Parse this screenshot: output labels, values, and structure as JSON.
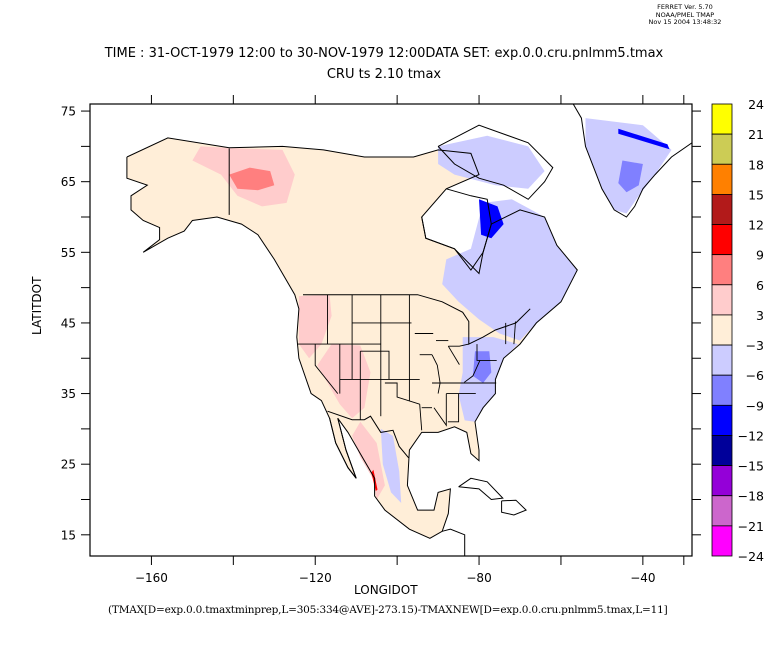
{
  "header": {
    "ferret_lines": [
      "FERRET Ver. 5.70",
      "NOAA/PMEL TMAP",
      "Nov 15 2004 13:48:32"
    ],
    "title_line1": "TIME : 31-OCT-1979 12:00 to 30-NOV-1979 12:00DATA SET: exp.0.0.cru.pnlmm5.tmax",
    "title_line2": "CRU ts 2.10 tmax"
  },
  "footer": {
    "expression": "(TMAX[D=exp.0.0.tmaxtminprep,L=305:334@AVE]-273.15)-TMAXNEW[D=exp.0.0.cru.pnlmm5.tmax,L=11]"
  },
  "chart_data": {
    "type": "heatmap",
    "title": "CRU ts 2.10 tmax",
    "subtitle": "TIME : 31-OCT-1979 12:00 to 30-NOV-1979 12:00 DATA SET: exp.0.0.cru.pnlmm5.tmax",
    "xlabel": "LONGIDOT",
    "ylabel": "LATITDOT",
    "xlim": [
      -175,
      -28
    ],
    "ylim": [
      12,
      76
    ],
    "x_ticks": [
      -160,
      -120,
      -80,
      -40
    ],
    "x_tick_labels": [
      "-160",
      "-120",
      "-80",
      "-40"
    ],
    "x_minor_ticks": [
      -140,
      -100,
      -60,
      -30
    ],
    "y_ticks": [
      15,
      25,
      35,
      45,
      55,
      65,
      75
    ],
    "y_tick_labels": [
      "15",
      "25",
      "35",
      "45",
      "55",
      "65",
      "75"
    ],
    "y_minor_ticks": [
      20,
      30,
      40,
      50,
      60,
      70
    ],
    "grid": false,
    "legend": "right (colorbar)",
    "colorbar": {
      "levels": [
        -24,
        -21,
        -18,
        -15,
        -12,
        -9,
        -6,
        -3,
        3,
        6,
        9,
        12,
        15,
        18,
        21,
        24
      ],
      "labels": [
        "24",
        "21",
        "18",
        "15",
        "12",
        "9",
        "6",
        "3",
        "−3",
        "−6",
        "−9",
        "−12",
        "−15",
        "−18",
        "−21",
        "−24"
      ],
      "colors_top_to_bottom": [
        "#ffff00",
        "#cccc55",
        "#ff8000",
        "#b21a1a",
        "#ff0000",
        "#ff7f7f",
        "#ffcccc",
        "#ffeed8",
        "#ccccff",
        "#8080ff",
        "#0000ff",
        "#00009a",
        "#9400d8",
        "#cc66cc",
        "#ff00ff"
      ]
    },
    "regions": [
      {
        "name": "north-america-land",
        "value_bin": "-3..3",
        "color": "#ffeed8"
      },
      {
        "name": "alaska-yukon-warm",
        "value_bin": "3..6",
        "color": "#ffcccc"
      },
      {
        "name": "yukon-core-warm",
        "value_bin": "6..9",
        "color": "#ff7f7f"
      },
      {
        "name": "pacific-northwest-warm",
        "value_bin": "3..6",
        "color": "#ffcccc"
      },
      {
        "name": "great-basin-warm",
        "value_bin": "3..6",
        "color": "#ffcccc"
      },
      {
        "name": "western-mexico-warm",
        "value_bin": "3..6",
        "color": "#ffcccc"
      },
      {
        "name": "mexico-coast-hot",
        "value_bin": "9..12",
        "color": "#ff0000"
      },
      {
        "name": "eastern-canada-cool",
        "value_bin": "-6..-3",
        "color": "#ccccff"
      },
      {
        "name": "eastern-us-cool",
        "value_bin": "-6..-3",
        "color": "#ccccff"
      },
      {
        "name": "appalachian-cooler",
        "value_bin": "-9..-6",
        "color": "#8080ff"
      },
      {
        "name": "hudson-strait-cold",
        "value_bin": "-12..-9",
        "color": "#0000ff"
      },
      {
        "name": "baffin-cool",
        "value_bin": "-6..-3",
        "color": "#ccccff"
      },
      {
        "name": "greenland-cool",
        "value_bin": "-6..-3",
        "color": "#ccccff"
      },
      {
        "name": "greenland-cooler",
        "value_bin": "-9..-6",
        "color": "#8080ff"
      },
      {
        "name": "greenland-edge-cold",
        "value_bin": "-12..-9",
        "color": "#0000ff"
      },
      {
        "name": "central-mexico-cool",
        "value_bin": "-6..-3",
        "color": "#ccccff"
      }
    ]
  }
}
